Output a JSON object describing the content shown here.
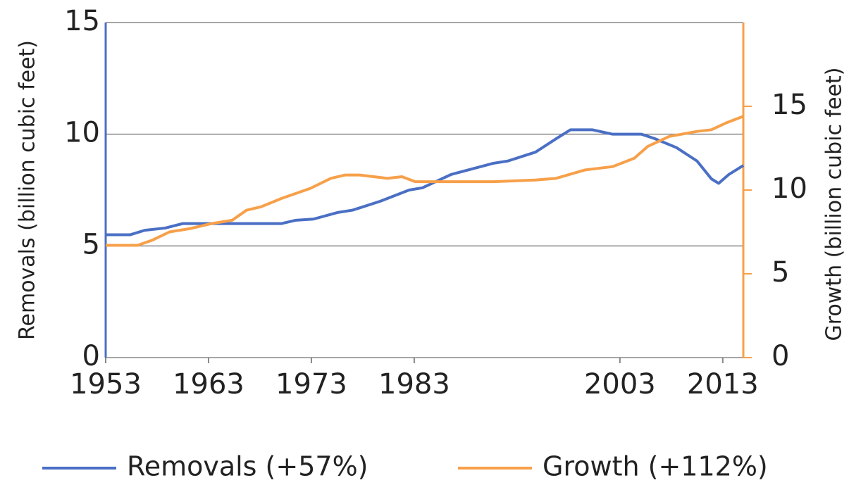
{
  "chart_data": {
    "type": "line",
    "y_label": "Removals (billion cubic feet)",
    "y2_label": "Growth (billion cubic feet)",
    "xlim": [
      1953,
      2015
    ],
    "xticks": [
      1953,
      1963,
      1973,
      1983,
      2003,
      2013
    ],
    "ylim": [
      0,
      15
    ],
    "yticks": [
      0,
      5,
      10,
      15
    ],
    "y2lim": [
      0,
      20
    ],
    "y2ticks": [
      0,
      5,
      10,
      15
    ],
    "grid": true,
    "series": [
      {
        "name": "Removals (+57%)",
        "color": "#4a6fc4",
        "axis": "y",
        "x": [
          1953.0,
          1955.4,
          1956.8,
          1958.8,
          1960.5,
          1970.1,
          1971.5,
          1973.2,
          1975.6,
          1977.0,
          1979.7,
          1982.5,
          1983.8,
          1986.6,
          1990.7,
          1992.1,
          1994.8,
          1996.8,
          1998.2,
          2000.3,
          2002.3,
          2005.1,
          2006.4,
          2008.5,
          2010.5,
          2011.9,
          2012.6,
          2013.6,
          2014.3,
          2015.0
        ],
        "values": [
          5.5,
          5.5,
          5.7,
          5.8,
          6.0,
          6.0,
          6.15,
          6.2,
          6.5,
          6.6,
          7.0,
          7.5,
          7.6,
          8.2,
          8.7,
          8.8,
          9.2,
          9.8,
          10.2,
          10.2,
          10.0,
          10.0,
          9.8,
          9.4,
          8.8,
          8.0,
          7.8,
          8.2,
          8.4,
          8.6
        ]
      },
      {
        "name": "Growth (+112%)",
        "color": "#f7a04a",
        "axis": "y2",
        "x": [
          1953.0,
          1956.1,
          1957.5,
          1959.2,
          1961.2,
          1963.3,
          1965.3,
          1966.7,
          1968.1,
          1970.1,
          1972.9,
          1974.9,
          1976.3,
          1977.7,
          1980.4,
          1981.8,
          1983.1,
          1990.7,
          1994.8,
          1996.8,
          1999.6,
          2002.3,
          2004.4,
          2005.7,
          2007.8,
          2010.5,
          2011.9,
          2013.3,
          2015.0
        ],
        "values": [
          6.7,
          6.7,
          7.0,
          7.5,
          7.7,
          8.0,
          8.2,
          8.8,
          9.0,
          9.5,
          10.1,
          10.7,
          10.9,
          10.9,
          10.7,
          10.8,
          10.5,
          10.5,
          10.6,
          10.7,
          11.2,
          11.4,
          11.9,
          12.6,
          13.2,
          13.5,
          13.6,
          14.0,
          14.4
        ]
      }
    ]
  }
}
